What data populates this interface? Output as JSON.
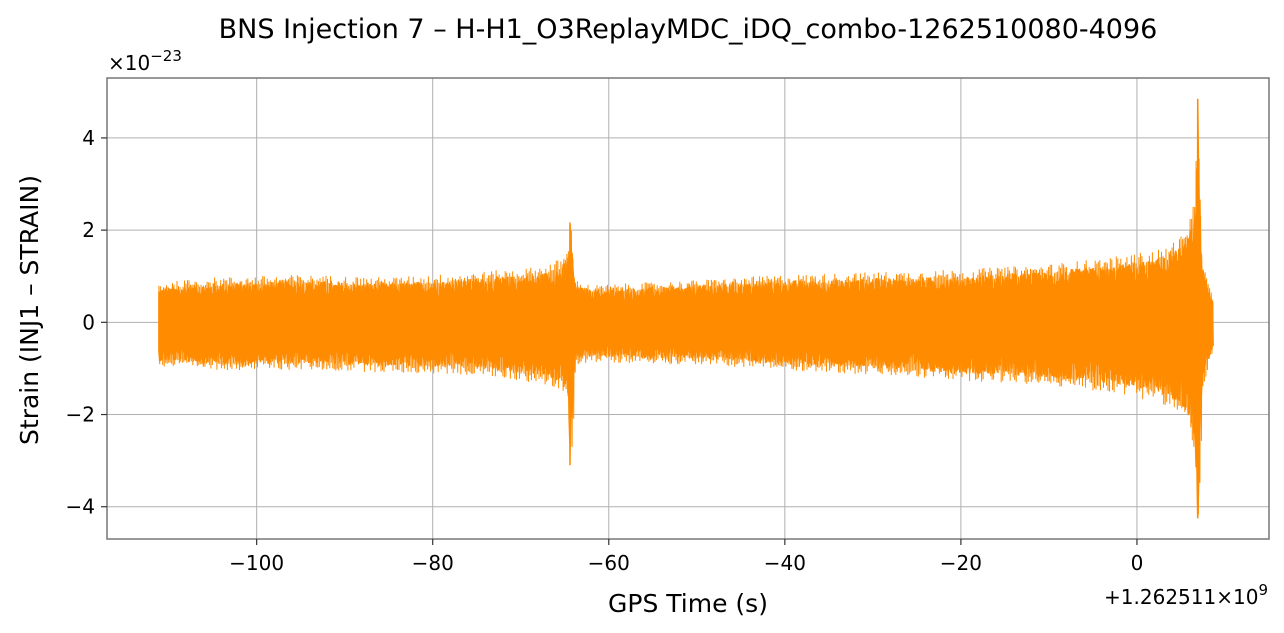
{
  "chart_data": {
    "type": "line",
    "title": "BNS Injection 7 – H-H1_O3ReplayMDC_iDQ_combo-1262510080-4096",
    "xlabel": "GPS Time (s)",
    "ylabel": "Strain (INJ1 – STRAIN)",
    "y_multiplier_label": "×10",
    "y_multiplier_exponent": "−23",
    "x_offset_label": "+1.262511×10",
    "x_offset_exponent": "9",
    "xlim": [
      -117,
      15
    ],
    "ylim": [
      -4.7,
      5.3
    ],
    "x_ticks": [
      -100,
      -80,
      -60,
      -40,
      -20,
      0
    ],
    "x_tick_labels": [
      "−100",
      "−80",
      "−60",
      "−40",
      "−20",
      "0"
    ],
    "y_ticks": [
      -4,
      -2,
      0,
      2,
      4
    ],
    "y_tick_labels": [
      "−4",
      "−2",
      "0",
      "2",
      "4"
    ],
    "grid": true,
    "series": [
      {
        "color": "#ff8c00",
        "x_range": [
          -111.1,
          8.6
        ],
        "envelope": {
          "x": [
            -111,
            -105,
            -95,
            -85,
            -75,
            -68,
            -65.5,
            -64.6,
            -64.4,
            -63.8,
            -62,
            -50,
            -40,
            -30,
            -20,
            -10,
            -2,
            3,
            5.5,
            6.6,
            6.9,
            7.4,
            8,
            8.6
          ],
          "max": [
            0.75,
            0.85,
            0.9,
            0.85,
            0.95,
            1.05,
            1.2,
            1.4,
            2.15,
            0.8,
            0.7,
            0.8,
            0.9,
            0.95,
            1.0,
            1.1,
            1.25,
            1.4,
            1.7,
            2.3,
            4.85,
            1.2,
            0.8,
            0.5
          ],
          "min": [
            -0.85,
            -0.9,
            -0.9,
            -0.95,
            -1.0,
            -1.15,
            -1.3,
            -1.6,
            -3.1,
            -0.8,
            -0.75,
            -0.8,
            -0.9,
            -1.0,
            -1.1,
            -1.2,
            -1.35,
            -1.55,
            -1.9,
            -2.5,
            -4.25,
            -1.3,
            -0.9,
            -0.55
          ]
        }
      }
    ]
  }
}
